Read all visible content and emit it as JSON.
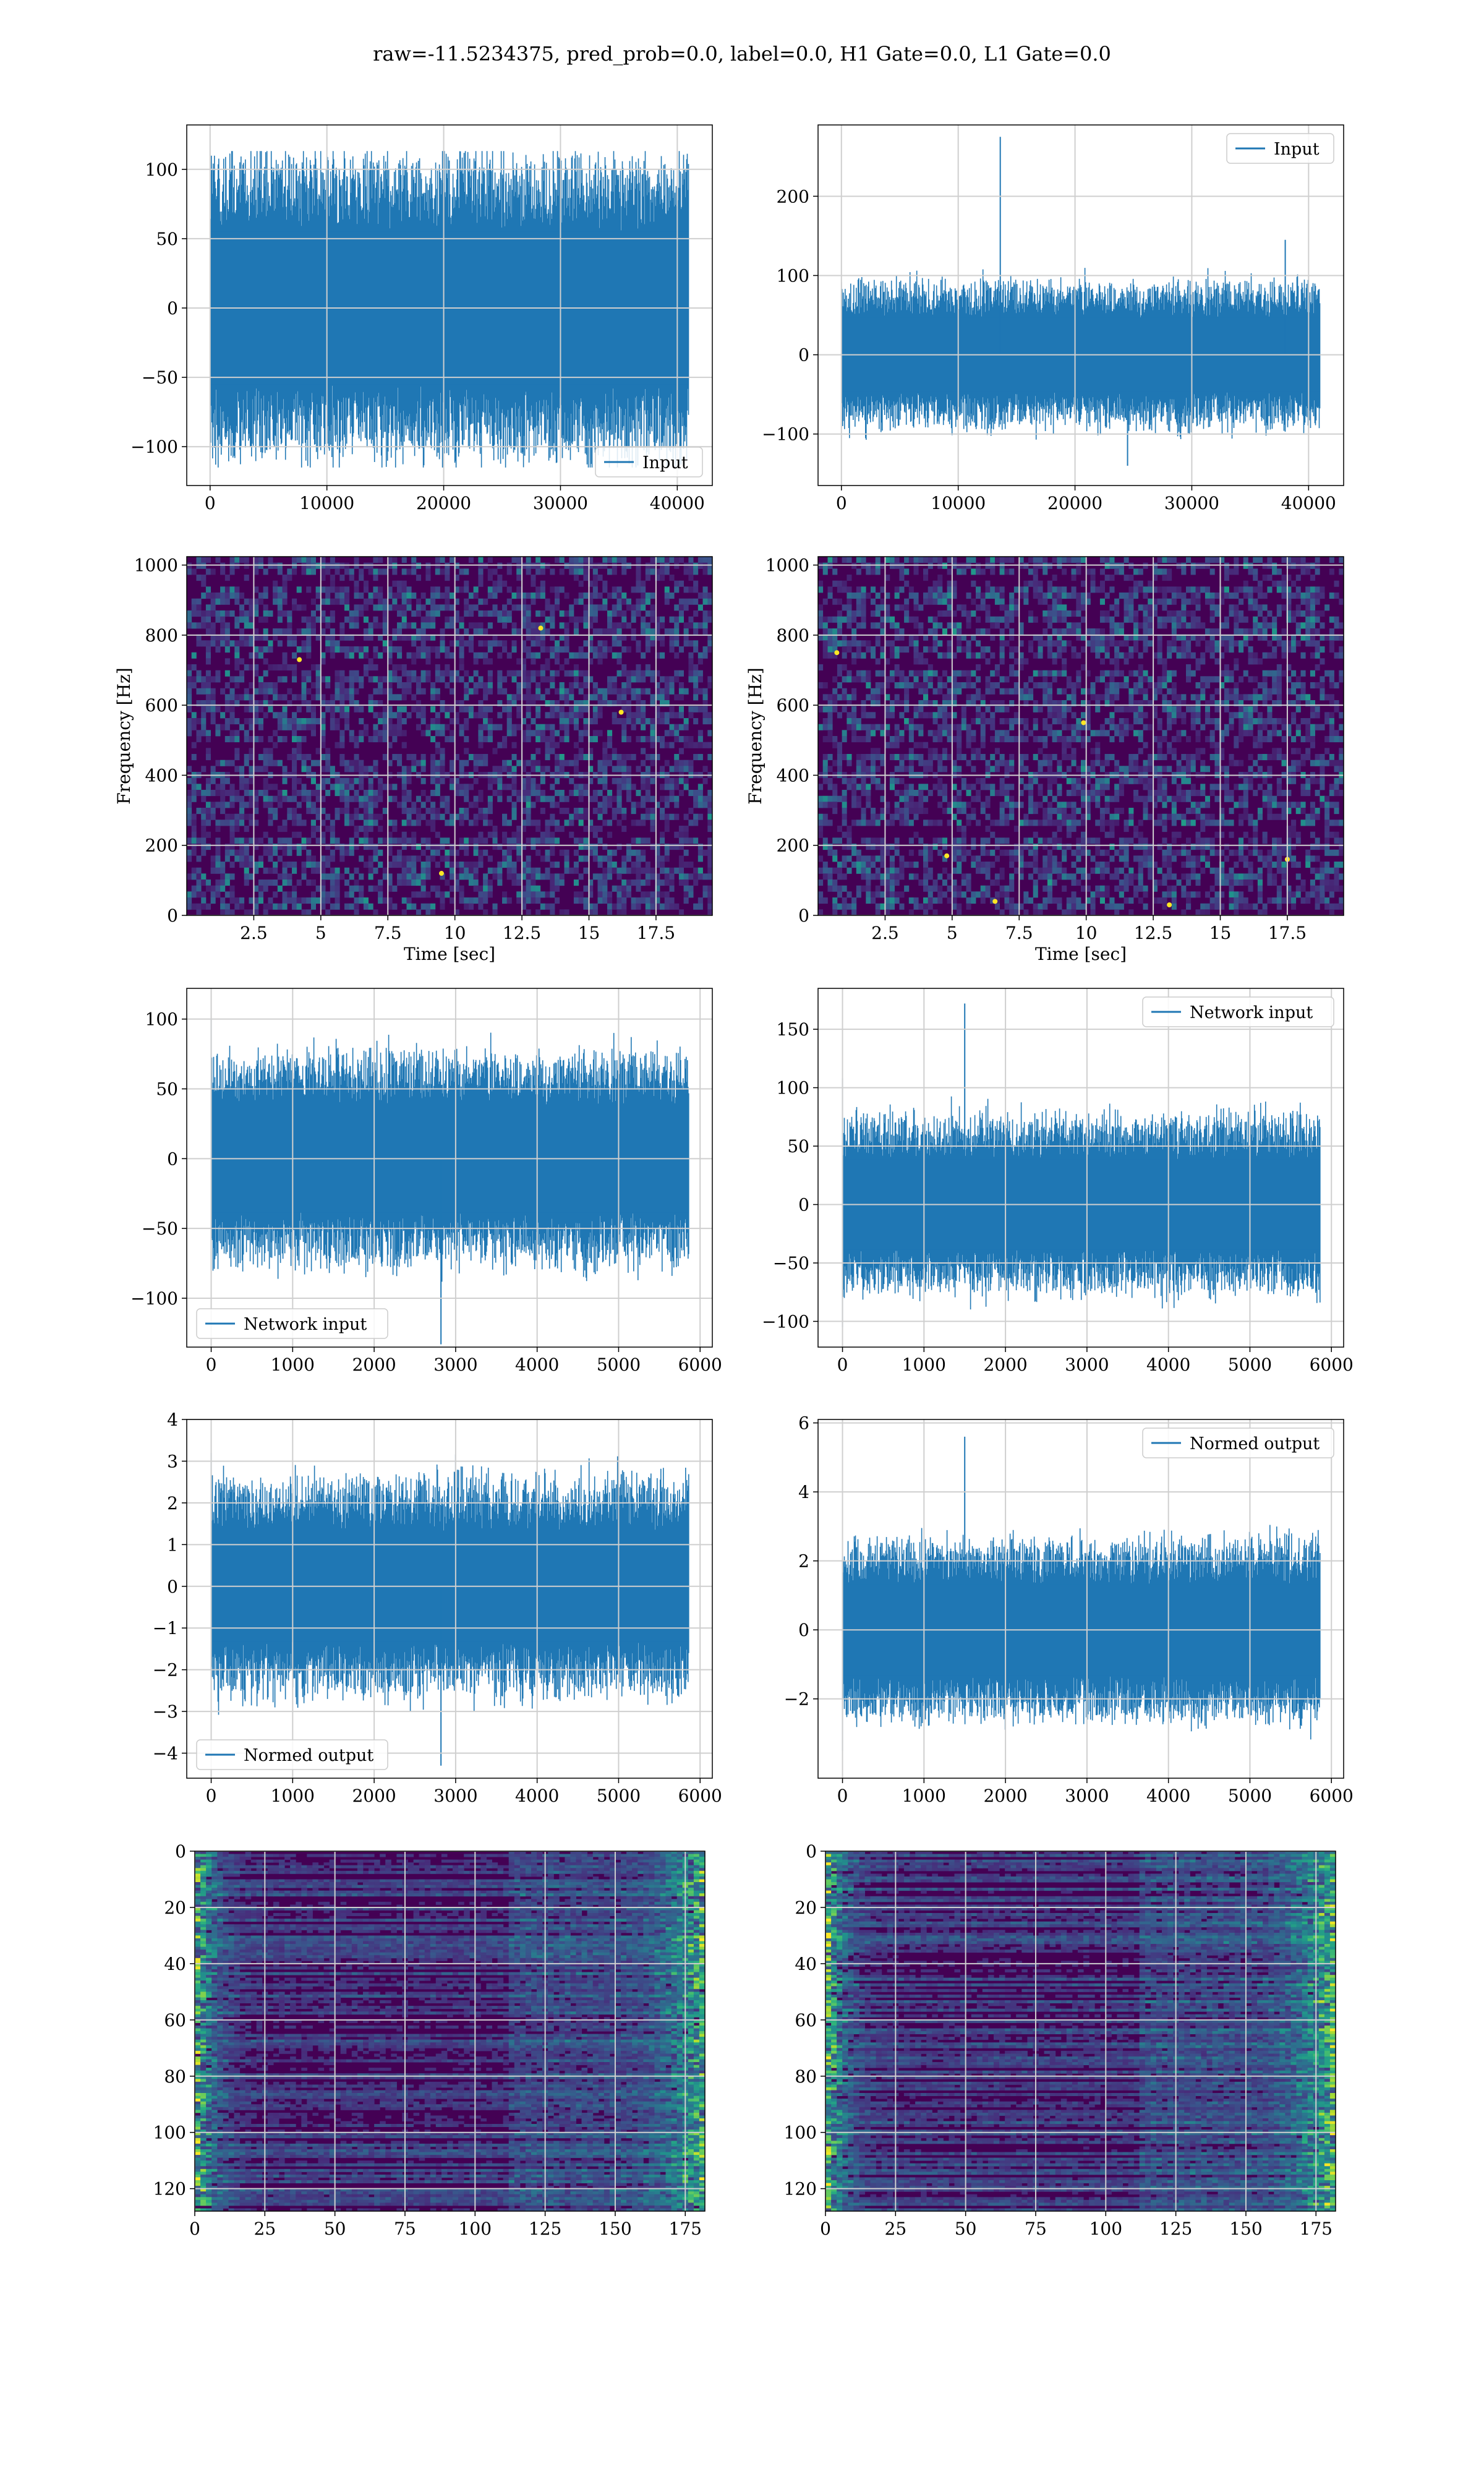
{
  "figure": {
    "title": "raw=-11.5234375, pred_prob=0.0, label=0.0, H1 Gate=0.0, L1 Gate=0.0"
  },
  "colors": {
    "line": "#1f77b4",
    "grid": "#cfcfcf",
    "viridis": [
      "#440154",
      "#472d7b",
      "#3b528b",
      "#2c728e",
      "#21918c",
      "#28ae80",
      "#5ec962",
      "#addc30",
      "#fde725"
    ]
  },
  "chart_data": [
    {
      "id": "input-h1",
      "type": "line",
      "row": 0,
      "col": 0,
      "xlim": [
        -2000,
        43000
      ],
      "ylim": [
        -128,
        132
      ],
      "xticks": [
        0,
        10000,
        20000,
        30000,
        40000
      ],
      "yticks": [
        -100,
        -50,
        0,
        50,
        100
      ],
      "xlabel": "",
      "ylabel": "",
      "grid": true,
      "legend": {
        "label": "Input",
        "loc": "lower-right"
      },
      "series": [
        {
          "name": "Input",
          "n_samples": 40960,
          "x_end": 40960,
          "amplitude": 100,
          "envelope": [
            -125,
            123
          ],
          "spikes": []
        }
      ]
    },
    {
      "id": "input-l1",
      "type": "line",
      "row": 0,
      "col": 1,
      "xlim": [
        -2000,
        43000
      ],
      "ylim": [
        -165,
        290
      ],
      "xticks": [
        0,
        10000,
        20000,
        30000,
        40000
      ],
      "yticks": [
        -100,
        0,
        100,
        200
      ],
      "xlabel": "",
      "ylabel": "",
      "grid": true,
      "legend": {
        "label": "Input",
        "loc": "upper-right"
      },
      "series": [
        {
          "name": "Input",
          "n_samples": 40960,
          "x_end": 40960,
          "amplitude": 85,
          "envelope": [
            -140,
            275
          ],
          "spikes": [
            [
              13600,
              275
            ],
            [
              38000,
              145
            ],
            [
              24500,
              -140
            ]
          ]
        }
      ]
    },
    {
      "id": "spec-h1",
      "type": "heatmap",
      "row": 1,
      "col": 0,
      "xlim": [
        0,
        19.6
      ],
      "ylim": [
        0,
        1024
      ],
      "xticks": [
        2.5,
        5.0,
        7.5,
        10.0,
        12.5,
        15.0,
        17.5
      ],
      "yticks": [
        0,
        200,
        400,
        600,
        800,
        1000
      ],
      "xlabel": "Time [sec]",
      "ylabel": "Frequency [Hz]",
      "grid": true,
      "hot_spots": [
        [
          13.2,
          820
        ],
        [
          16.2,
          580
        ],
        [
          9.5,
          120
        ],
        [
          4.2,
          730
        ]
      ]
    },
    {
      "id": "spec-l1",
      "type": "heatmap",
      "row": 1,
      "col": 1,
      "xlim": [
        0,
        19.6
      ],
      "ylim": [
        0,
        1024
      ],
      "xticks": [
        2.5,
        5.0,
        7.5,
        10.0,
        12.5,
        15.0,
        17.5
      ],
      "yticks": [
        0,
        200,
        400,
        600,
        800,
        1000
      ],
      "xlabel": "Time [sec]",
      "ylabel": "Frequency [Hz]",
      "grid": true,
      "hot_spots": [
        [
          6.6,
          40
        ],
        [
          13.1,
          30
        ],
        [
          17.5,
          160
        ],
        [
          9.9,
          550
        ],
        [
          0.7,
          750
        ],
        [
          4.8,
          170
        ]
      ]
    },
    {
      "id": "network-input-h1",
      "type": "line",
      "row": 2,
      "col": 0,
      "xlim": [
        -300,
        6150
      ],
      "ylim": [
        -135,
        122
      ],
      "xticks": [
        0,
        1000,
        2000,
        3000,
        4000,
        5000,
        6000
      ],
      "yticks": [
        -100,
        -50,
        0,
        50,
        100
      ],
      "xlabel": "",
      "ylabel": "",
      "grid": true,
      "legend": {
        "label": "Network input",
        "loc": "lower-left"
      },
      "series": [
        {
          "name": "Network input",
          "n_samples": 5860,
          "x_end": 5860,
          "amplitude": 70,
          "envelope": [
            -133,
            112
          ],
          "spikes": [
            [
              2820,
              -133
            ],
            [
              0,
              100
            ]
          ]
        }
      ]
    },
    {
      "id": "network-input-l1",
      "type": "line",
      "row": 2,
      "col": 1,
      "xlim": [
        -300,
        6150
      ],
      "ylim": [
        -122,
        185
      ],
      "xticks": [
        0,
        1000,
        2000,
        3000,
        4000,
        5000,
        6000
      ],
      "yticks": [
        -100,
        -50,
        0,
        50,
        100,
        150
      ],
      "xlabel": "",
      "ylabel": "",
      "grid": true,
      "legend": {
        "label": "Network input",
        "loc": "upper-right"
      },
      "series": [
        {
          "name": "Network input",
          "n_samples": 5860,
          "x_end": 5860,
          "amplitude": 70,
          "envelope": [
            -108,
            172
          ],
          "spikes": [
            [
              1500,
              172
            ],
            [
              0,
              108
            ],
            [
              0,
              -105
            ]
          ]
        }
      ]
    },
    {
      "id": "normed-output-h1",
      "type": "line",
      "row": 3,
      "col": 0,
      "xlim": [
        -300,
        6150
      ],
      "ylim": [
        -4.6,
        4.0
      ],
      "xticks": [
        0,
        1000,
        2000,
        3000,
        4000,
        5000,
        6000
      ],
      "yticks": [
        -4,
        -3,
        -2,
        -1,
        0,
        1,
        2,
        3,
        4
      ],
      "xlabel": "",
      "ylabel": "",
      "grid": true,
      "legend": {
        "label": "Normed output",
        "loc": "lower-left"
      },
      "series": [
        {
          "name": "Normed output",
          "n_samples": 5860,
          "x_end": 5860,
          "amplitude": 2.4,
          "envelope": [
            -4.3,
            3.6
          ],
          "spikes": [
            [
              2820,
              -4.3
            ],
            [
              0,
              3.2
            ]
          ]
        }
      ]
    },
    {
      "id": "normed-output-l1",
      "type": "line",
      "row": 3,
      "col": 1,
      "xlim": [
        -300,
        6150
      ],
      "ylim": [
        -4.3,
        6.1
      ],
      "xticks": [
        0,
        1000,
        2000,
        3000,
        4000,
        5000,
        6000
      ],
      "yticks": [
        -2,
        0,
        2,
        4,
        6
      ],
      "xlabel": "",
      "ylabel": "",
      "grid": true,
      "legend": {
        "label": "Normed output",
        "loc": "upper-right"
      },
      "series": [
        {
          "name": "Normed output",
          "n_samples": 5860,
          "x_end": 5860,
          "amplitude": 2.4,
          "envelope": [
            -3.5,
            5.6
          ],
          "spikes": [
            [
              1500,
              5.6
            ],
            [
              0,
              -3.5
            ]
          ]
        }
      ]
    },
    {
      "id": "features-h1",
      "type": "heatmap",
      "row": 4,
      "col": 0,
      "xlim": [
        0,
        182
      ],
      "ylim": [
        128,
        0
      ],
      "xticks": [
        0,
        25,
        50,
        75,
        100,
        125,
        150,
        175
      ],
      "yticks": [
        0,
        20,
        40,
        60,
        80,
        100,
        120
      ],
      "xlabel": "",
      "ylabel": "",
      "grid": true,
      "edge_bright": true
    },
    {
      "id": "features-l1",
      "type": "heatmap",
      "row": 4,
      "col": 1,
      "xlim": [
        0,
        182
      ],
      "ylim": [
        128,
        0
      ],
      "xticks": [
        0,
        25,
        50,
        75,
        100,
        125,
        150,
        175
      ],
      "yticks": [
        0,
        20,
        40,
        60,
        80,
        100,
        120
      ],
      "xlabel": "",
      "ylabel": "",
      "grid": true,
      "edge_bright": true
    }
  ]
}
